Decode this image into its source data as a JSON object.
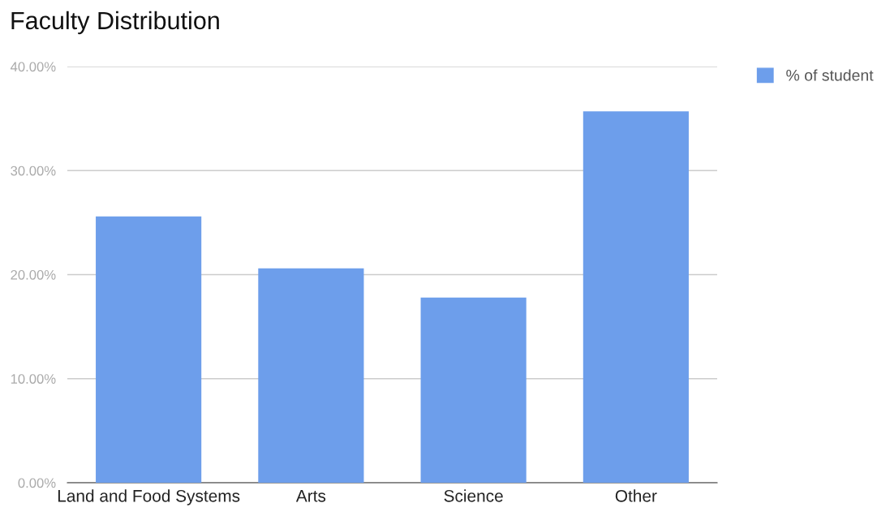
{
  "chart_data": {
    "type": "bar",
    "title": "Faculty Distribution",
    "categories": [
      "Land and Food Systems",
      "Arts",
      "Science",
      "Other"
    ],
    "series": [
      {
        "name": "% of student",
        "color": "#6d9eeb",
        "values": [
          25.6,
          20.6,
          17.8,
          35.7
        ]
      }
    ],
    "ylim": [
      0,
      40
    ],
    "yticks": [
      {
        "value": 0,
        "label": "0.00%"
      },
      {
        "value": 10,
        "label": "10.00%"
      },
      {
        "value": 20,
        "label": "20.00%"
      },
      {
        "value": 30,
        "label": "30.00%"
      },
      {
        "value": 40,
        "label": "40.00%"
      }
    ],
    "grid": "y",
    "legend": "top right"
  }
}
